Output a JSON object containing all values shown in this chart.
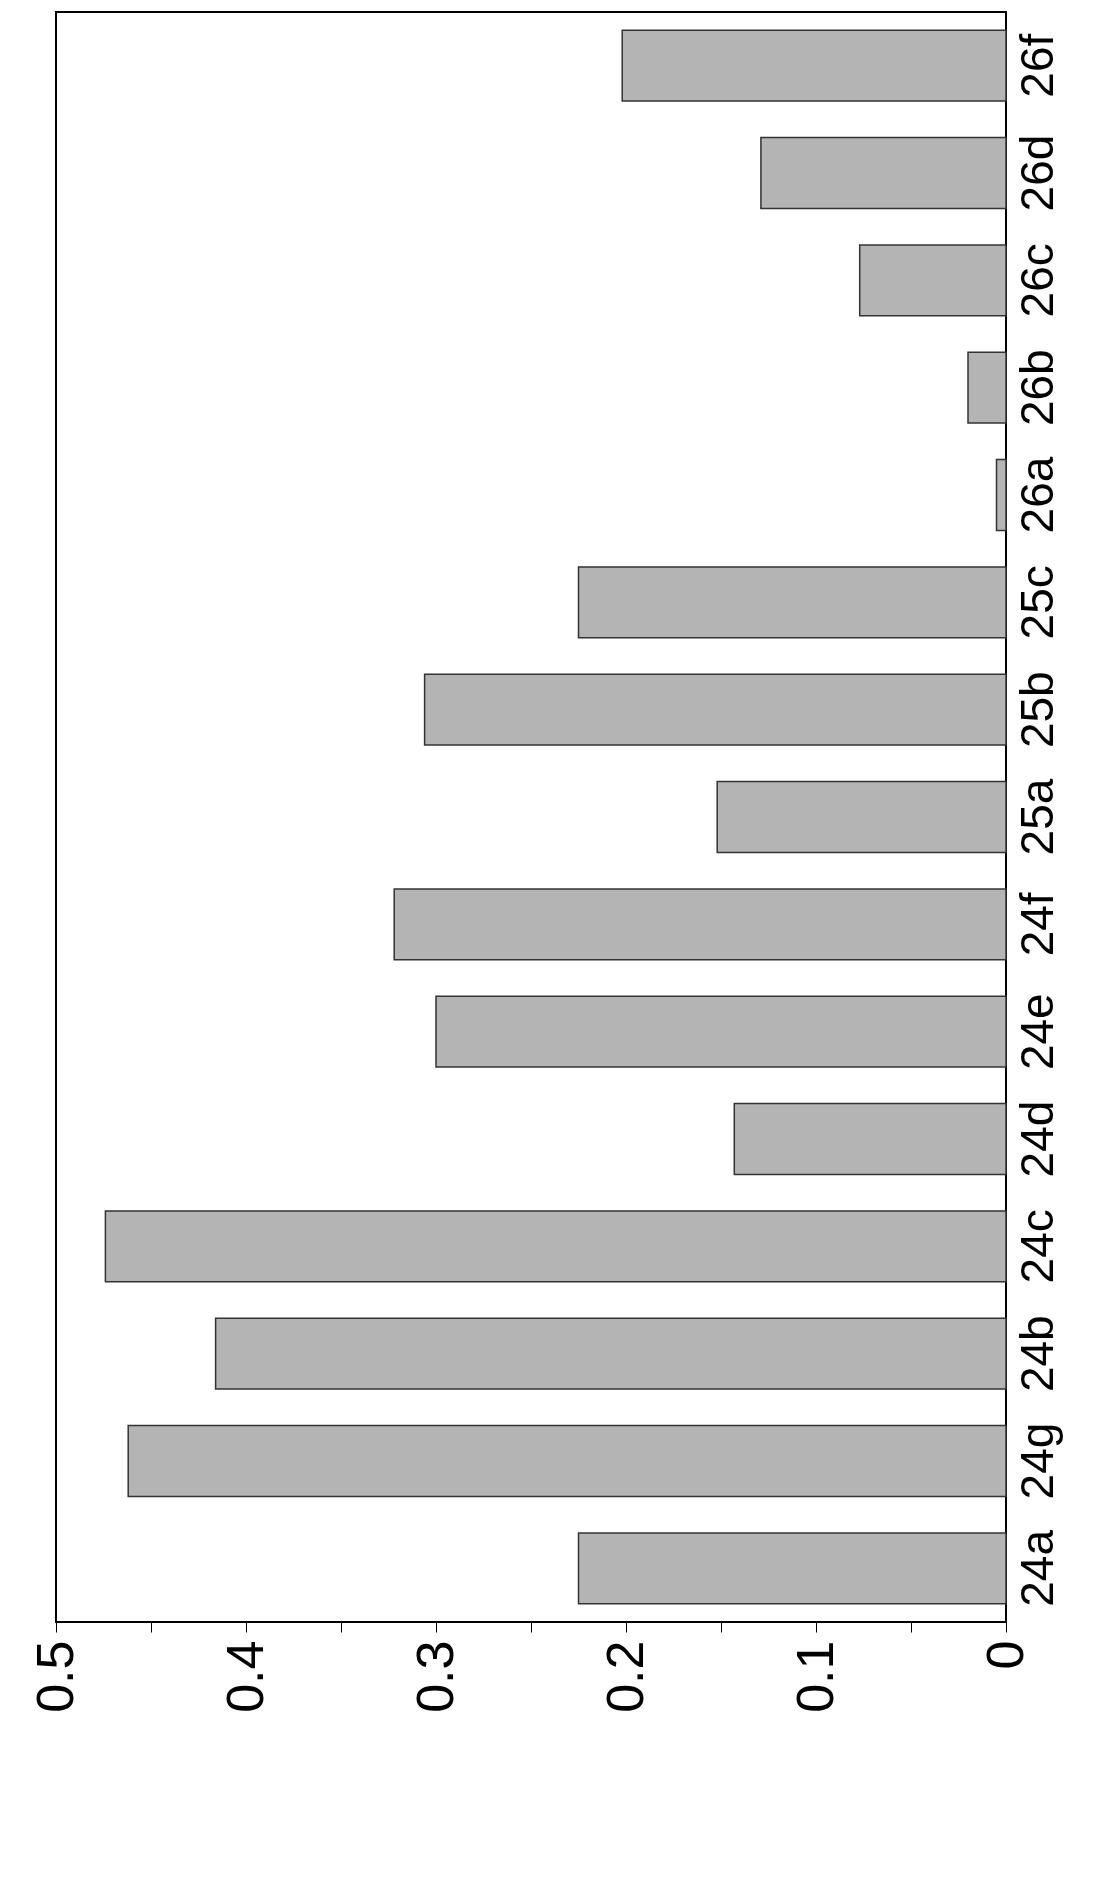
{
  "chart_data": {
    "type": "bar",
    "orientation": "horizontal",
    "categories": [
      "26f",
      "26d",
      "26c",
      "26b",
      "26a",
      "25c",
      "25b",
      "25a",
      "24f",
      "24e",
      "24d",
      "24c",
      "24b",
      "24g",
      "24a"
    ],
    "values": [
      0.202,
      0.129,
      0.077,
      0.02,
      0.005,
      0.225,
      0.306,
      0.152,
      0.322,
      0.3,
      0.143,
      0.474,
      0.416,
      0.462,
      0.225
    ],
    "color": "#b4b4b4",
    "xlim": [
      0.5,
      0
    ],
    "xticks": [
      0,
      {
        "value": 0.05,
        "label": null
      },
      0.1,
      {
        "value": 0.15,
        "label": null
      },
      0.2,
      {
        "value": 0.25,
        "label": null
      },
      0.3,
      {
        "value": 0.35,
        "label": null
      },
      0.4,
      {
        "value": 0.45,
        "label": null
      },
      0.5
    ],
    "grid": false
  }
}
